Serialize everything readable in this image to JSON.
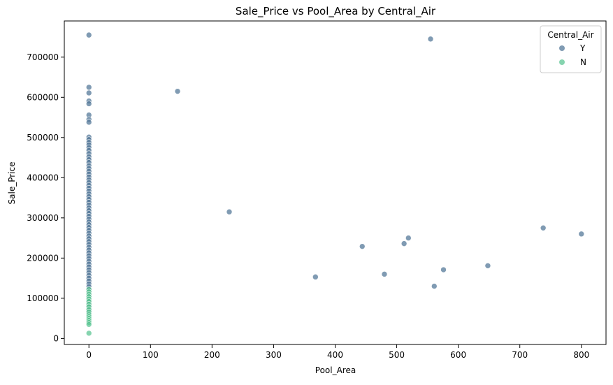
{
  "chart_data": {
    "type": "scatter",
    "title": "Sale_Price vs Pool_Area by Central_Air",
    "xlabel": "Pool_Area",
    "ylabel": "Sale_Price",
    "xlim": [
      -40,
      840
    ],
    "ylim": [
      -15000,
      790000
    ],
    "xticks": [
      0,
      100,
      200,
      300,
      400,
      500,
      600,
      700,
      800
    ],
    "yticks": [
      0,
      100000,
      200000,
      300000,
      400000,
      500000,
      600000,
      700000
    ],
    "grid": false,
    "legend": {
      "title": "Central_Air",
      "placement": "top-right",
      "entries": [
        {
          "label": "Y",
          "color": "#4f7596"
        },
        {
          "label": "N",
          "color": "#57c490"
        }
      ]
    },
    "series": [
      {
        "name": "Y",
        "color": "#4f7596",
        "points": [
          [
            0,
            755000
          ],
          [
            0,
            625000
          ],
          [
            0,
            611000
          ],
          [
            0,
            591000
          ],
          [
            0,
            584000
          ],
          [
            0,
            556000
          ],
          [
            0,
            545000
          ],
          [
            0,
            538000
          ],
          [
            0,
            501000
          ],
          [
            0,
            495000
          ],
          [
            0,
            488000
          ],
          [
            0,
            482000
          ],
          [
            0,
            475000
          ],
          [
            0,
            468000
          ],
          [
            0,
            460000
          ],
          [
            0,
            452000
          ],
          [
            0,
            445000
          ],
          [
            0,
            438000
          ],
          [
            0,
            430000
          ],
          [
            0,
            423000
          ],
          [
            0,
            416000
          ],
          [
            0,
            409000
          ],
          [
            0,
            402000
          ],
          [
            0,
            395000
          ],
          [
            0,
            388000
          ],
          [
            0,
            381000
          ],
          [
            0,
            374000
          ],
          [
            0,
            367000
          ],
          [
            0,
            360000
          ],
          [
            0,
            353000
          ],
          [
            0,
            346000
          ],
          [
            0,
            339000
          ],
          [
            0,
            332000
          ],
          [
            0,
            325000
          ],
          [
            0,
            318000
          ],
          [
            0,
            311000
          ],
          [
            0,
            304000
          ],
          [
            0,
            297000
          ],
          [
            0,
            290000
          ],
          [
            0,
            283000
          ],
          [
            0,
            276000
          ],
          [
            0,
            269000
          ],
          [
            0,
            262000
          ],
          [
            0,
            255000
          ],
          [
            0,
            248000
          ],
          [
            0,
            241000
          ],
          [
            0,
            234000
          ],
          [
            0,
            227000
          ],
          [
            0,
            220000
          ],
          [
            0,
            213000
          ],
          [
            0,
            206000
          ],
          [
            0,
            199000
          ],
          [
            0,
            192000
          ],
          [
            0,
            185000
          ],
          [
            0,
            178000
          ],
          [
            0,
            171000
          ],
          [
            0,
            164000
          ],
          [
            0,
            157000
          ],
          [
            0,
            150000
          ],
          [
            0,
            143000
          ],
          [
            0,
            136000
          ],
          [
            0,
            129000
          ],
          [
            0,
            122000
          ],
          [
            0,
            115000
          ],
          [
            0,
            108000
          ],
          [
            0,
            101000
          ],
          [
            0,
            94000
          ],
          [
            0,
            87000
          ],
          [
            0,
            80000
          ],
          [
            0,
            73000
          ],
          [
            0,
            66000
          ],
          [
            144,
            615000
          ],
          [
            228,
            315000
          ],
          [
            368,
            153000
          ],
          [
            444,
            229000
          ],
          [
            480,
            160000
          ],
          [
            512,
            236000
          ],
          [
            519,
            250000
          ],
          [
            555,
            745000
          ],
          [
            561,
            130000
          ],
          [
            576,
            171000
          ],
          [
            648,
            181000
          ],
          [
            738,
            275000
          ],
          [
            800,
            260000
          ]
        ]
      },
      {
        "name": "N",
        "color": "#57c490",
        "points": [
          [
            0,
            122000
          ],
          [
            0,
            116000
          ],
          [
            0,
            110000
          ],
          [
            0,
            104000
          ],
          [
            0,
            98000
          ],
          [
            0,
            92000
          ],
          [
            0,
            85000
          ],
          [
            0,
            79000
          ],
          [
            0,
            72000
          ],
          [
            0,
            66000
          ],
          [
            0,
            60000
          ],
          [
            0,
            55000
          ],
          [
            0,
            50000
          ],
          [
            0,
            45000
          ],
          [
            0,
            40000
          ],
          [
            0,
            35000
          ],
          [
            0,
            13000
          ]
        ]
      }
    ]
  }
}
